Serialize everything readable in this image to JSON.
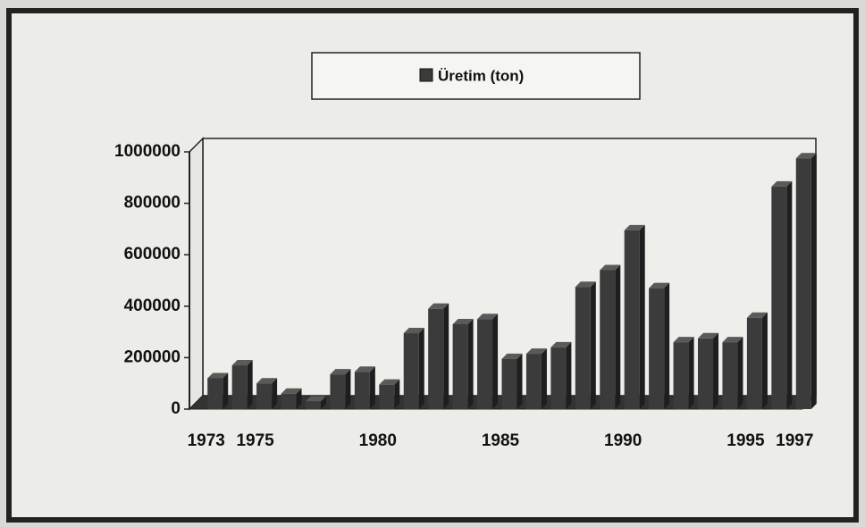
{
  "chart_data": {
    "type": "bar",
    "legend": "Üretim (ton)",
    "categories": [
      "1973",
      null,
      "1975",
      null,
      null,
      null,
      null,
      "1980",
      null,
      null,
      null,
      null,
      "1985",
      null,
      null,
      null,
      null,
      "1990",
      null,
      null,
      null,
      null,
      "1995",
      null,
      "1997"
    ],
    "values": [
      120000,
      170000,
      100000,
      60000,
      30000,
      135000,
      145000,
      95000,
      295000,
      390000,
      330000,
      350000,
      195000,
      215000,
      240000,
      475000,
      540000,
      695000,
      470000,
      260000,
      275000,
      260000,
      355000,
      865000,
      975000
    ],
    "color": "#3b3b3b",
    "ylim": [
      0,
      1000000
    ],
    "yticks": [
      0,
      200000,
      400000,
      600000,
      800000,
      1000000
    ]
  }
}
